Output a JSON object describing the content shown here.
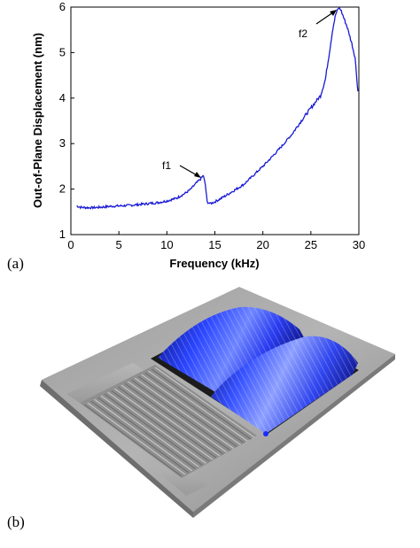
{
  "panel_a": {
    "label": "(a)",
    "chart_data": {
      "type": "line",
      "title": "",
      "xlabel": "Frequency (kHz)",
      "ylabel": "Out-of-Plane Displacement (nm)",
      "xlim": [
        0,
        30
      ],
      "ylim": [
        1,
        6
      ],
      "xticks": [
        0,
        5,
        10,
        15,
        20,
        25,
        30
      ],
      "yticks": [
        1,
        2,
        3,
        4,
        5,
        6
      ],
      "grid": false,
      "series": [
        {
          "color": "#1a1ad6",
          "x": [
            0.6,
            1,
            2,
            3,
            4,
            5,
            6,
            7,
            8,
            9,
            10,
            11,
            12,
            12.5,
            13,
            13.5,
            13.8,
            14.0,
            14.2,
            14.5,
            15,
            16,
            17,
            18,
            19,
            20,
            21,
            22,
            23,
            24,
            25,
            25.5,
            26,
            26.5,
            27,
            27.3,
            27.6,
            27.9,
            28.1,
            28.4,
            28.8,
            29.2,
            29.6,
            29.9
          ],
          "y": [
            1.63,
            1.6,
            1.59,
            1.6,
            1.62,
            1.63,
            1.64,
            1.66,
            1.68,
            1.7,
            1.74,
            1.8,
            1.92,
            2.0,
            2.12,
            2.22,
            2.3,
            2.1,
            1.72,
            1.68,
            1.72,
            1.84,
            1.97,
            2.1,
            2.3,
            2.5,
            2.72,
            2.95,
            3.2,
            3.5,
            3.78,
            3.92,
            4.05,
            4.4,
            5.1,
            5.55,
            5.85,
            5.98,
            5.95,
            5.78,
            5.55,
            5.25,
            4.9,
            4.15
          ]
        }
      ],
      "annotations": [
        {
          "text": "f1",
          "x": 13.7,
          "y": 2.28
        },
        {
          "text": "f2",
          "x": 27.9,
          "y": 5.98
        }
      ]
    }
  },
  "panel_b": {
    "label": "(b)",
    "image": "3d-surface-render",
    "colors": {
      "substrate": "#a6a6a6",
      "membrane": "#1f35ff",
      "membrane_dark": "#0a0f6b"
    }
  }
}
